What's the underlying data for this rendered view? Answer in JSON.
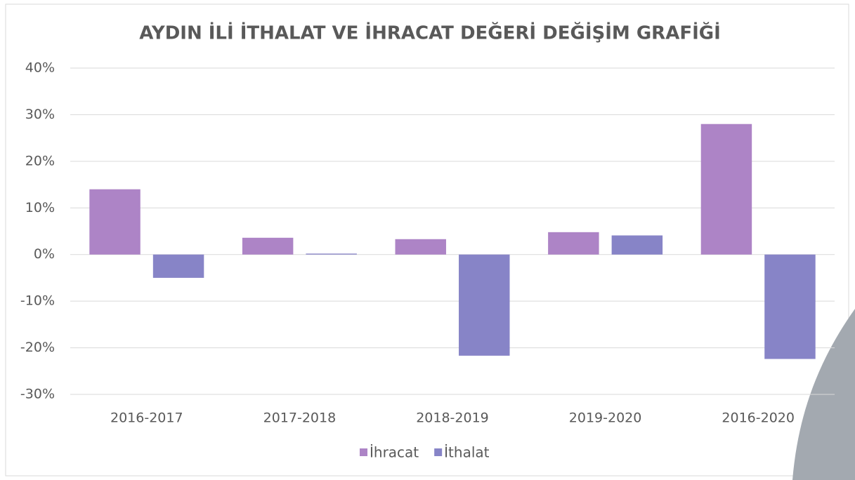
{
  "chart_data": {
    "type": "bar",
    "title": "AYDIN İLİ İTHALAT VE İHRACAT DEĞERİ DEĞİŞİM GRAFİĞİ",
    "categories": [
      "2016-2017",
      "2017-2018",
      "2018-2019",
      "2019-2020",
      "2016-2020"
    ],
    "series": [
      {
        "name": "İhracat",
        "color": "#ad84c6",
        "values": [
          14.0,
          3.6,
          3.3,
          4.8,
          28.0
        ]
      },
      {
        "name": "İthalat",
        "color": "#8784c7",
        "values": [
          -5.0,
          0.2,
          -21.7,
          4.1,
          -22.4
        ]
      }
    ],
    "ylim": [
      -30,
      40
    ],
    "yticks": [
      {
        "value": -30,
        "label": "-30%"
      },
      {
        "value": -20,
        "label": "-20%"
      },
      {
        "value": -10,
        "label": "-10%"
      },
      {
        "value": 0,
        "label": "0%"
      },
      {
        "value": 10,
        "label": "10%"
      },
      {
        "value": 20,
        "label": "20%"
      },
      {
        "value": 30,
        "label": "30%"
      },
      {
        "value": 40,
        "label": "40%"
      }
    ],
    "grid": true,
    "legend": "bottom"
  }
}
